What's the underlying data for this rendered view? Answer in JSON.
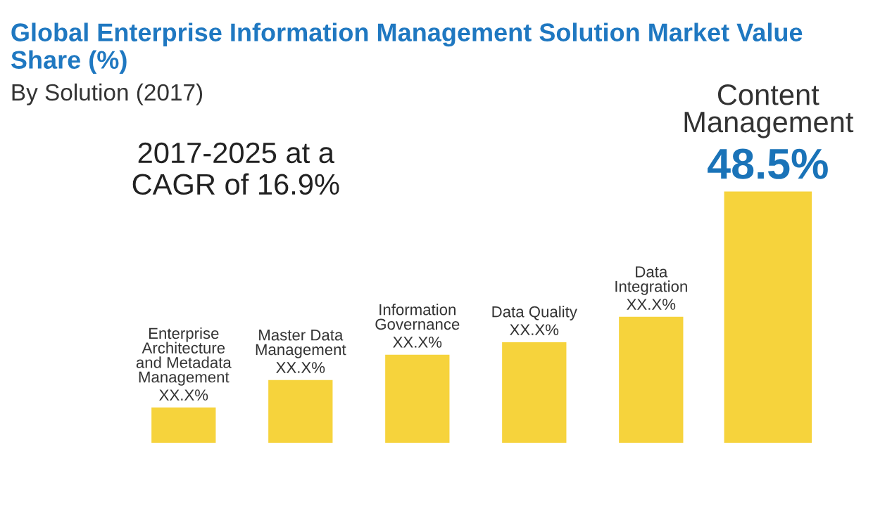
{
  "chart_data": {
    "type": "bar",
    "title": "Global Enterprise Information Management Solution Market Value Share (%)",
    "subtitle": "By Solution (2017)",
    "categories": [
      "Enterprise Architecture and Metadata Management",
      "Master Data Management",
      "Information Governance",
      "Data Quality",
      "Data Integration",
      "Content Management"
    ],
    "values": [
      6.8,
      12.1,
      17,
      19.4,
      24.3,
      48.5
    ],
    "value_labels": [
      "XX.X%",
      "XX.X%",
      "XX.X%",
      "XX.X%",
      "XX.X%",
      "48.5%"
    ],
    "color": "#f6d33c",
    "annotations": [
      "2017-2025 at a CAGR of 16.9%"
    ]
  }
}
